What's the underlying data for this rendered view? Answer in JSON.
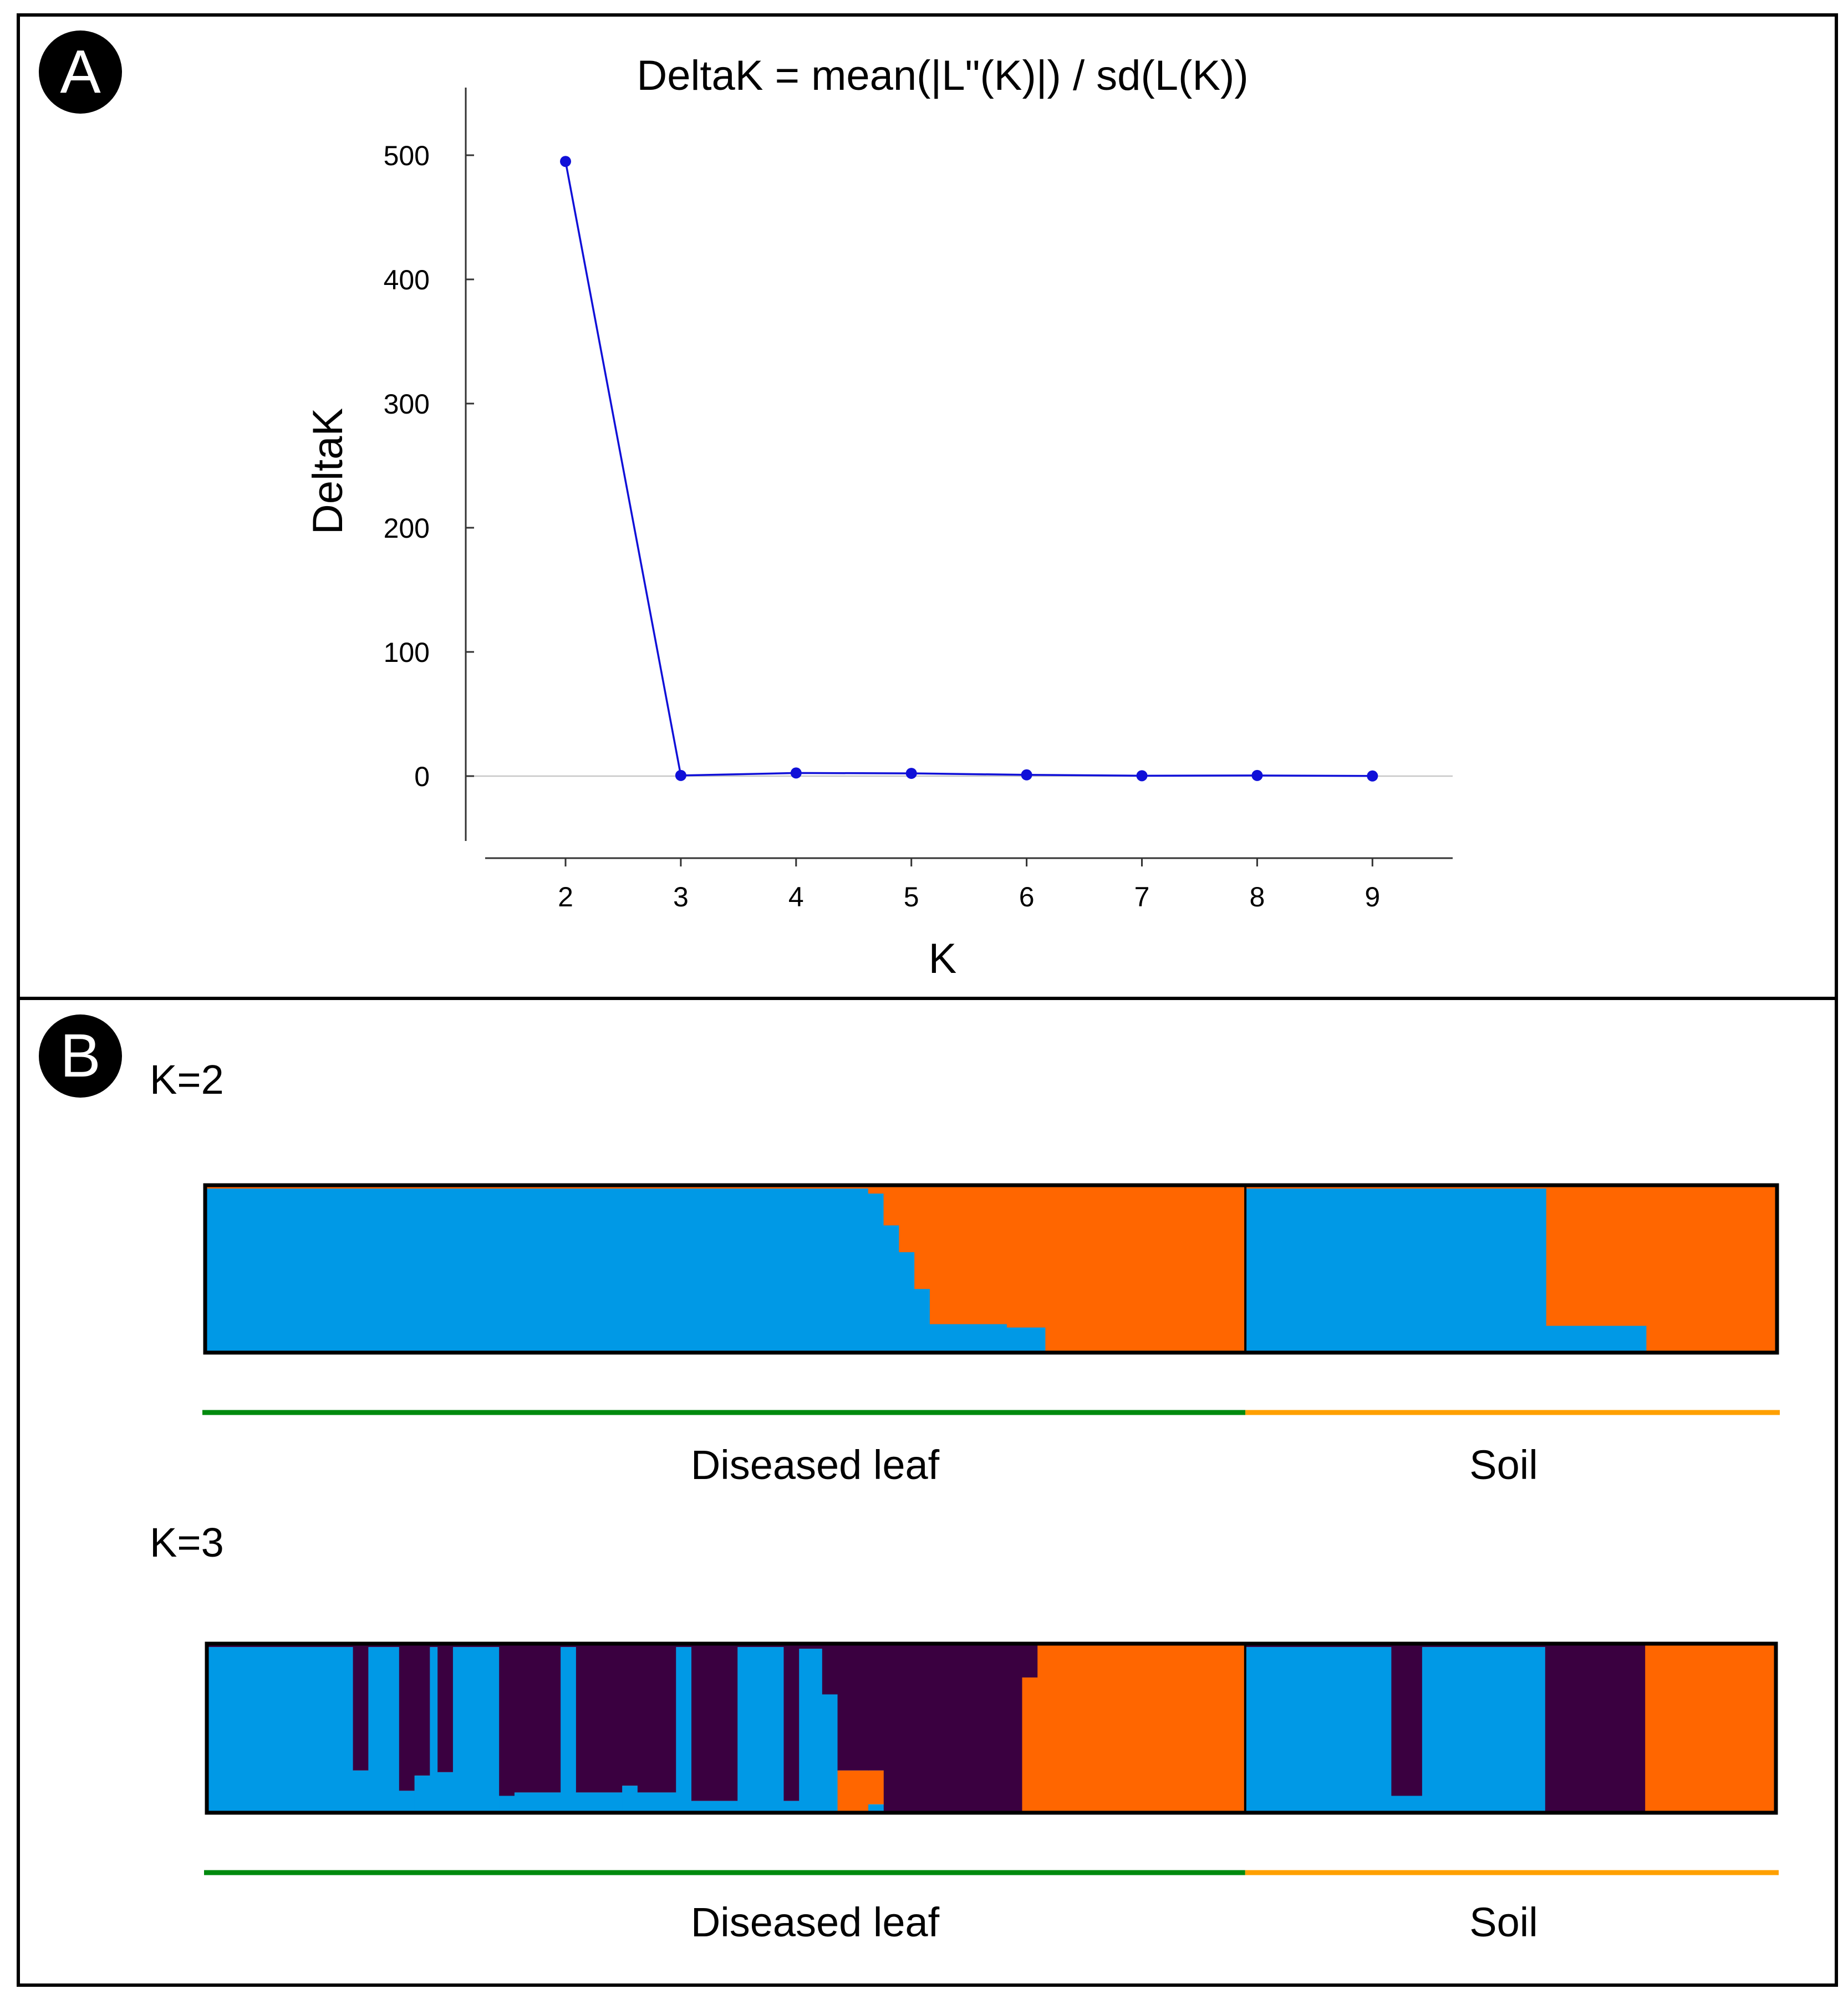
{
  "panel_a": {
    "badge": "A",
    "chart_data": {
      "type": "line",
      "title": "DeltaK = mean(|L\"(K)|) / sd(L(K))",
      "xlabel": "K",
      "ylabel": "DeltaK",
      "x": [
        2,
        3,
        4,
        5,
        6,
        7,
        8,
        9
      ],
      "series": [
        {
          "values": [
            495,
            0.5,
            2.5,
            2.2,
            1.0,
            0.3,
            0.5,
            0.1
          ],
          "color": "#1010d8"
        }
      ],
      "xticks": [
        "2",
        "3",
        "4",
        "5",
        "6",
        "7",
        "8",
        "9"
      ],
      "yticks": [
        "0",
        "100",
        "200",
        "300",
        "400",
        "500"
      ],
      "ylim": [
        -50,
        550
      ],
      "grid": false
    }
  },
  "panel_b": {
    "badge": "B",
    "colors": {
      "cluster_blue": "#0099e6",
      "cluster_orange": "#ff6600",
      "cluster_purple": "#3a0040",
      "leaf_line": "#008a0e",
      "soil_line": "#ffa000"
    },
    "groups": [
      {
        "name": "Diseased leaf",
        "samples": 135
      },
      {
        "name": "Soil",
        "samples": 69
      }
    ],
    "k2": {
      "title": "K=2",
      "blue_fraction": [
        {
          "from": 0,
          "to": 86,
          "value": 0.98
        },
        {
          "from": 86,
          "to": 88,
          "value": 0.95
        },
        {
          "from": 88,
          "to": 90,
          "value": 0.76
        },
        {
          "from": 90,
          "to": 92,
          "value": 0.6
        },
        {
          "from": 92,
          "to": 94,
          "value": 0.38
        },
        {
          "from": 94,
          "to": 104,
          "value": 0.17
        },
        {
          "from": 104,
          "to": 109,
          "value": 0.15
        },
        {
          "from": 109,
          "to": 135,
          "value": 0.0
        },
        {
          "from": 135,
          "to": 174,
          "value": 0.98
        },
        {
          "from": 174,
          "to": 187,
          "value": 0.16
        },
        {
          "from": 187,
          "to": 204,
          "value": 0.0
        }
      ]
    },
    "k3": {
      "title": "K=3",
      "segments": [
        {
          "from": 0,
          "to": 19,
          "blue": 0.98,
          "orange": 0.0
        },
        {
          "from": 19,
          "to": 21,
          "blue": 0.25,
          "orange": 0.0
        },
        {
          "from": 21,
          "to": 25,
          "blue": 0.98,
          "orange": 0.0
        },
        {
          "from": 25,
          "to": 27,
          "blue": 0.13,
          "orange": 0.0
        },
        {
          "from": 27,
          "to": 29,
          "blue": 0.22,
          "orange": 0.0
        },
        {
          "from": 29,
          "to": 30,
          "blue": 0.98,
          "orange": 0.0
        },
        {
          "from": 30,
          "to": 32,
          "blue": 0.24,
          "orange": 0.0
        },
        {
          "from": 32,
          "to": 34,
          "blue": 0.98,
          "orange": 0.0
        },
        {
          "from": 34,
          "to": 38,
          "blue": 0.98,
          "orange": 0.0
        },
        {
          "from": 38,
          "to": 40,
          "blue": 0.1,
          "orange": 0.0
        },
        {
          "from": 40,
          "to": 46,
          "blue": 0.12,
          "orange": 0.0
        },
        {
          "from": 46,
          "to": 48,
          "blue": 0.98,
          "orange": 0.0
        },
        {
          "from": 48,
          "to": 54,
          "blue": 0.12,
          "orange": 0.0
        },
        {
          "from": 54,
          "to": 56,
          "blue": 0.16,
          "orange": 0.0
        },
        {
          "from": 56,
          "to": 61,
          "blue": 0.12,
          "orange": 0.0
        },
        {
          "from": 61,
          "to": 63,
          "blue": 0.98,
          "orange": 0.0
        },
        {
          "from": 63,
          "to": 69,
          "blue": 0.07,
          "orange": 0.0
        },
        {
          "from": 69,
          "to": 75,
          "blue": 0.98,
          "orange": 0.0
        },
        {
          "from": 75,
          "to": 77,
          "blue": 0.07,
          "orange": 0.0
        },
        {
          "from": 77,
          "to": 80,
          "blue": 0.97,
          "orange": 0.0
        },
        {
          "from": 80,
          "to": 82,
          "blue": 0.7,
          "orange": 0.0
        },
        {
          "from": 82,
          "to": 86,
          "blue": 0.0,
          "orange": 0.25
        },
        {
          "from": 86,
          "to": 88,
          "blue": 0.05,
          "orange": 0.2
        },
        {
          "from": 88,
          "to": 92,
          "blue": 0.0,
          "orange": 0.0
        },
        {
          "from": 92,
          "to": 106,
          "blue": 0.0,
          "orange": 0.0
        },
        {
          "from": 106,
          "to": 108,
          "blue": 0.0,
          "orange": 0.8
        },
        {
          "from": 108,
          "to": 135,
          "blue": 0.0,
          "orange": 1.0
        },
        {
          "from": 135,
          "to": 154,
          "blue": 0.98,
          "orange": 0.0
        },
        {
          "from": 154,
          "to": 158,
          "blue": 0.1,
          "orange": 0.0
        },
        {
          "from": 158,
          "to": 174,
          "blue": 0.98,
          "orange": 0.0
        },
        {
          "from": 174,
          "to": 187,
          "blue": 0.0,
          "orange": 0.0
        },
        {
          "from": 187,
          "to": 204,
          "blue": 0.0,
          "orange": 1.0
        }
      ]
    }
  }
}
